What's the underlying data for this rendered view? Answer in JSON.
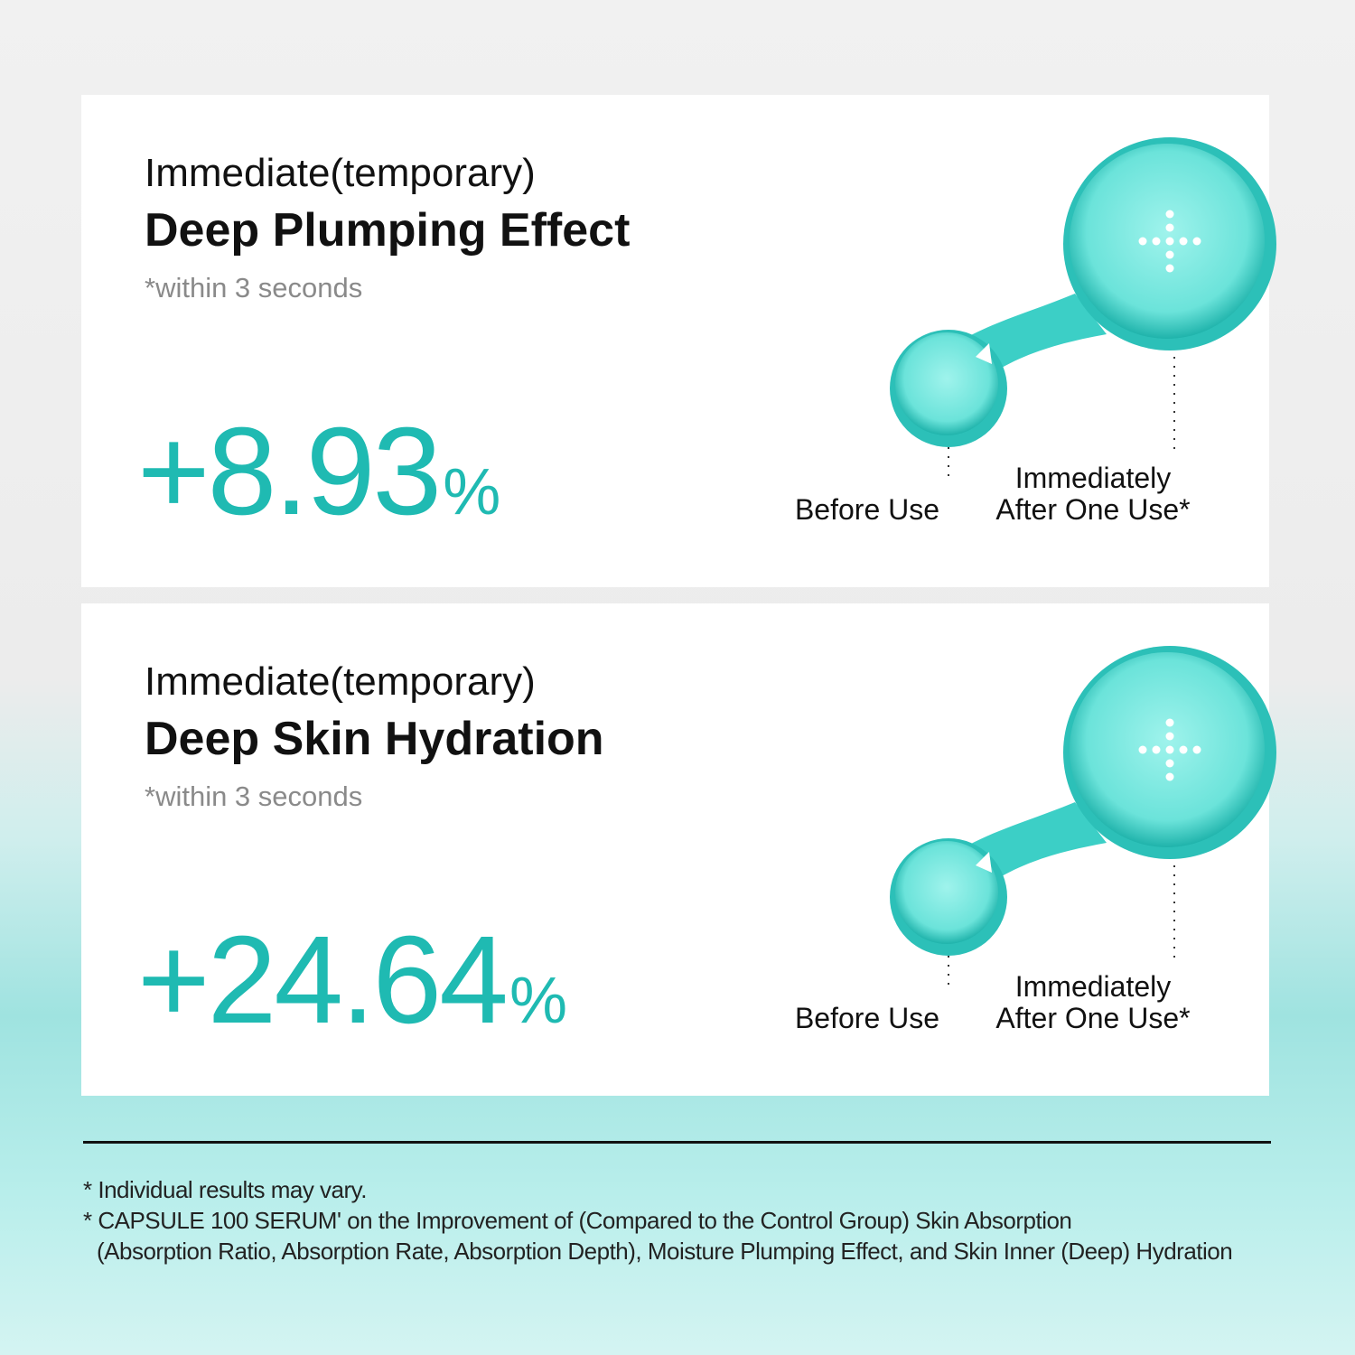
{
  "cards": [
    {
      "title_line1": "Immediate(temporary)",
      "title_line2": "Deep Plumping Effect",
      "subtitle": "*within 3 seconds",
      "value": "+8.93",
      "unit": "%",
      "label_before": "Before Use",
      "label_after_line1": "Immediately",
      "label_after_line2": "After One Use*"
    },
    {
      "title_line1": "Immediate(temporary)",
      "title_line2": "Deep Skin Hydration",
      "subtitle": "*within 3 seconds",
      "value": "+24.64",
      "unit": "%",
      "label_before": "Before Use",
      "label_after_line1": "Immediately",
      "label_after_line2": "After One Use*"
    }
  ],
  "footnotes": [
    "* Individual results may vary.",
    "* CAPSULE 100 SERUM' on the Improvement of (Compared to the Control Group) Skin Absorption",
    "(Absorption Ratio, Absorption Rate, Absorption Depth), Moisture Plumping Effect, and Skin Inner (Deep) Hydration"
  ],
  "colors": {
    "accent": "#1fbab2",
    "droplet": "#3ccfc6"
  }
}
